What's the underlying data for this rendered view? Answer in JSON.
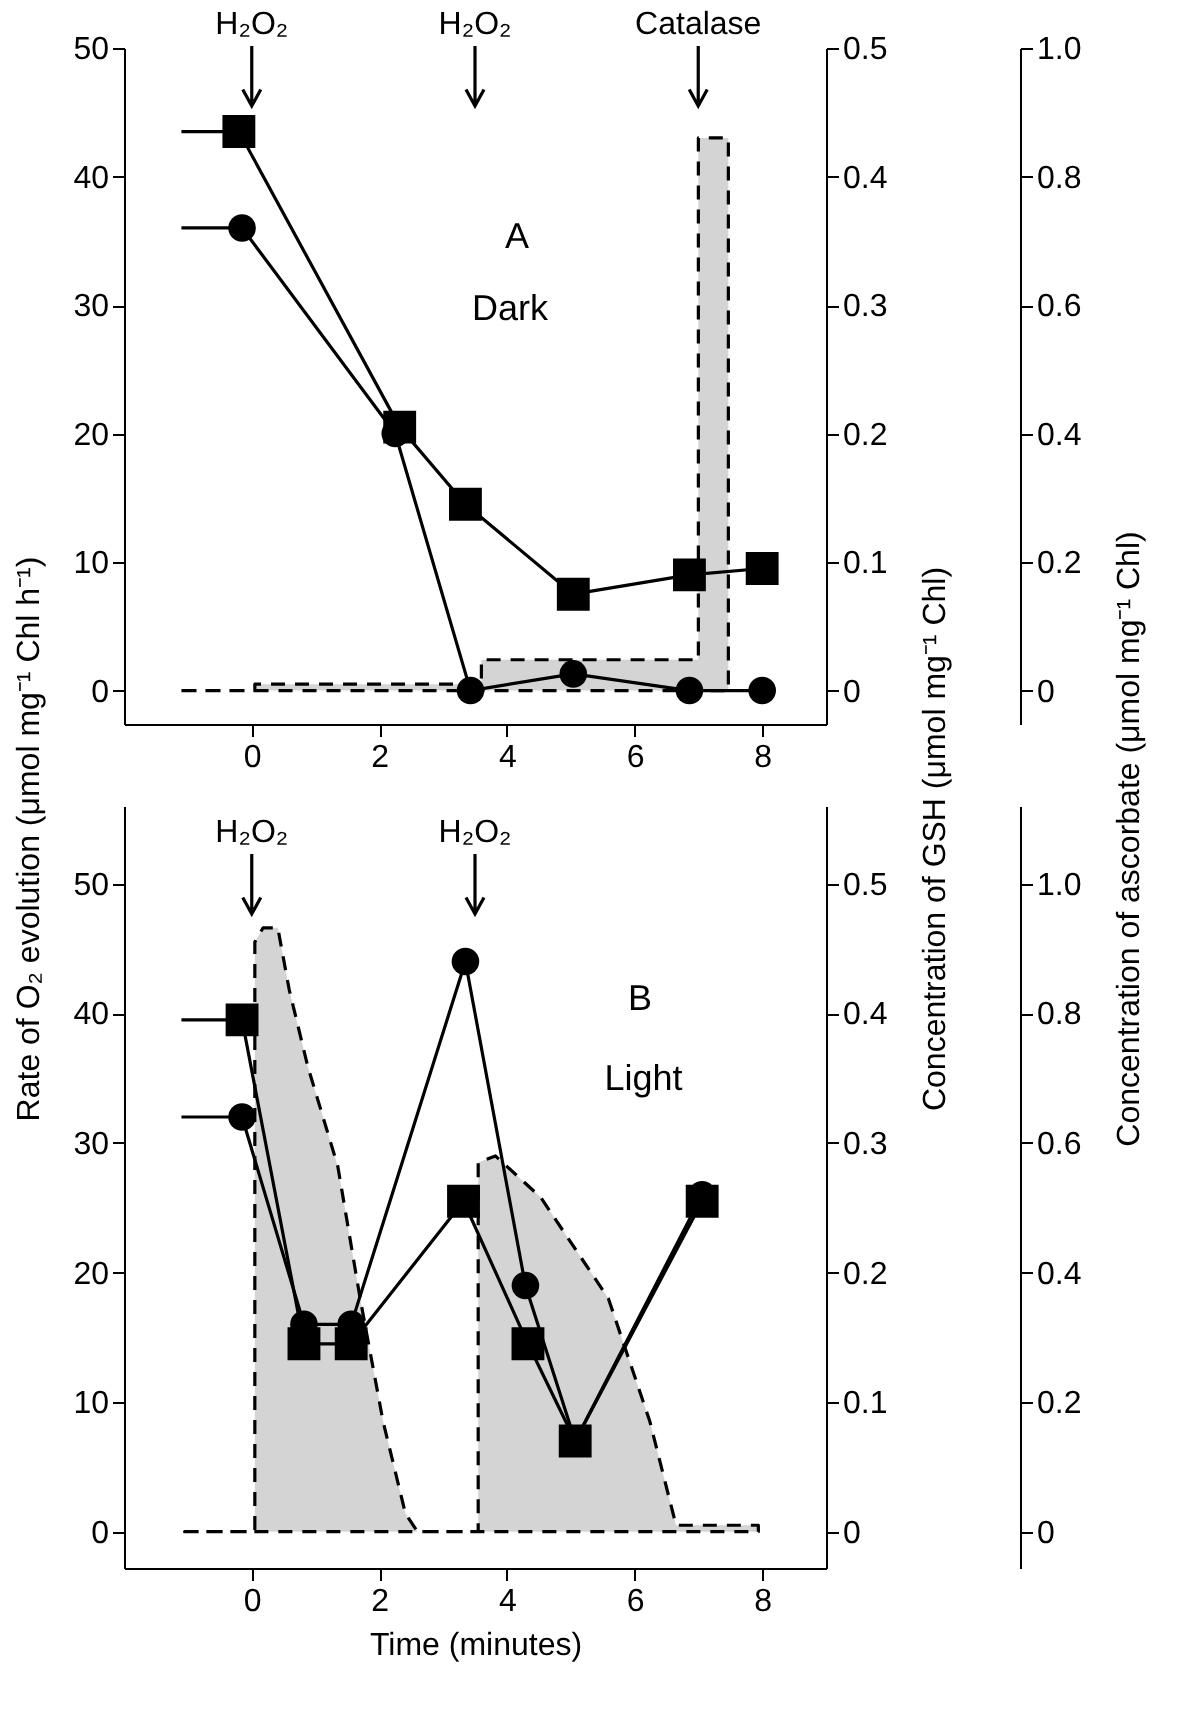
{
  "chart_data": [
    {
      "type": "line",
      "ylabel": "Rate of O₂ evolution (μmol mg⁻¹ Chl h⁻¹)",
      "y2label": "Concentration of GSH (μmol mg⁻¹ Chl)",
      "y3label": "Concentration of ascorbate (μmol mg⁻¹ Chl)",
      "xlim": [
        -2,
        9
      ],
      "xticks": [
        0,
        2,
        4,
        6,
        8
      ],
      "ylim": [
        -2.6,
        50
      ],
      "yticks": [
        0,
        10,
        20,
        30,
        40,
        50
      ],
      "y2lim": [
        -0.026,
        0.5
      ],
      "y2ticks": [
        0,
        0.1,
        0.2,
        0.3,
        0.4,
        0.5
      ],
      "y3lim": [
        -0.052,
        1.0
      ],
      "y3ticks": [
        0,
        0.2,
        0.4,
        0.6,
        0.8,
        {
          "value": 1,
          "label": "1.0"
        }
      ],
      "series": [
        {
          "type": "area",
          "color": "#d4d4d4",
          "line_style": "dashed",
          "x": [
            -1.1,
            0.05,
            0.05,
            3.6,
            3.6,
            7.0,
            7.0,
            7.47,
            7.47
          ],
          "values": [
            0,
            0,
            0.5,
            0.5,
            2.4,
            2.4,
            43,
            43,
            0
          ]
        },
        {
          "type": "line",
          "axis": "y3",
          "color": "#000000",
          "x": [
            -1.1,
            -0.2
          ],
          "values": [
            0.87,
            0.87
          ]
        },
        {
          "type": "line",
          "axis": "y3",
          "color": "#000000",
          "marker": "square",
          "x": [
            -0.2,
            2.32,
            3.35,
            5.04,
            6.86,
            8.0
          ],
          "values": [
            0.87,
            0.41,
            0.29,
            0.15,
            0.18,
            0.19
          ]
        },
        {
          "type": "line",
          "axis": "y2",
          "color": "#000000",
          "x": [
            -1.1,
            -0.15
          ],
          "values": [
            0.36,
            0.36
          ]
        },
        {
          "type": "line",
          "axis": "y2",
          "color": "#000000",
          "marker": "circle",
          "x": [
            -0.15,
            2.25,
            3.43,
            5.04,
            6.86,
            8.0
          ],
          "values": [
            0.36,
            0.2,
            0,
            0.013,
            0,
            0
          ]
        }
      ],
      "annotations": [
        "H₂O₂",
        "H₂O₂",
        "Catalase",
        "A",
        "Dark"
      ]
    },
    {
      "type": "line",
      "xlabel": "Time (minutes)",
      "xlim": [
        -2,
        9
      ],
      "xticks": [
        0,
        2,
        4,
        6,
        8
      ],
      "ylim": [
        -2.8,
        56
      ],
      "yticks": [
        0,
        10,
        20,
        30,
        40,
        50
      ],
      "y2lim": [
        -0.028,
        0.56
      ],
      "y2ticks": [
        0,
        0.1,
        0.2,
        0.3,
        0.4,
        0.5
      ],
      "y3lim": [
        -0.056,
        1.12
      ],
      "y3ticks": [
        0,
        0.2,
        0.4,
        0.6,
        0.8,
        {
          "value": 1,
          "label": "1.0"
        }
      ],
      "series": [
        {
          "type": "area",
          "color": "#d4d4d4",
          "line_style": "dashed",
          "x": [
            -1.05,
            0.05,
            0.05,
            0.18,
            0.41,
            0.59,
            0.88,
            1.35,
            1.7,
            2.06,
            2.41,
            2.6,
            3.55,
            3.55,
            3.82,
            4.53,
            5.59,
            6.24,
            6.65,
            7.94
          ],
          "values": [
            0,
            0,
            45.5,
            46.6,
            46.6,
            41.8,
            35.9,
            28.2,
            18,
            8.5,
            1.4,
            0,
            0,
            28.5,
            29,
            25.8,
            18,
            8.5,
            0.5,
            0.5
          ]
        },
        {
          "type": "line",
          "axis": "y3",
          "color": "#000000",
          "x": [
            -1.1,
            -0.15
          ],
          "values": [
            0.79,
            0.79
          ]
        },
        {
          "type": "line",
          "axis": "y3",
          "color": "#000000",
          "marker": "square",
          "x": [
            -0.15,
            0.82,
            1.56,
            3.32,
            4.33,
            5.07,
            7.06
          ],
          "values": [
            0.79,
            0.29,
            0.29,
            0.51,
            0.29,
            0.14,
            0.51
          ]
        },
        {
          "type": "line",
          "axis": "y2",
          "color": "#000000",
          "x": [
            -1.1,
            -0.15
          ],
          "values": [
            0.32,
            0.32
          ]
        },
        {
          "type": "line",
          "axis": "y2",
          "color": "#000000",
          "marker": "circle",
          "x": [
            -0.15,
            0.82,
            1.56,
            3.35,
            4.29,
            5.07,
            7.06
          ],
          "values": [
            0.32,
            0.16,
            0.16,
            0.44,
            0.19,
            0.07,
            0.26
          ]
        }
      ],
      "annotations": [
        "H₂O₂",
        "H₂O₂",
        "B",
        "Light"
      ]
    }
  ]
}
